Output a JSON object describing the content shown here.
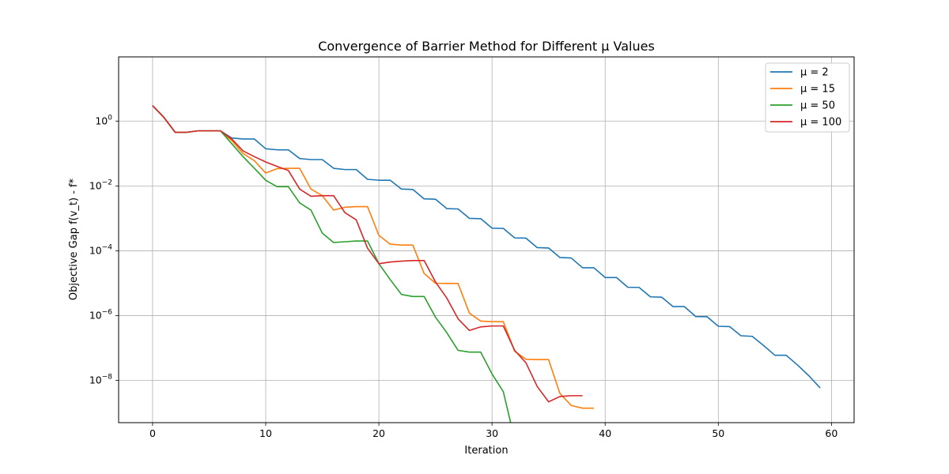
{
  "chart_data": {
    "type": "line",
    "title": "Convergence of Barrier Method for Different μ Values",
    "xlabel": "Iteration",
    "ylabel": "Objective Gap f(v_t) - f*",
    "xlim": [
      -3,
      62
    ],
    "ylim_log10": [
      -9.3,
      1.98
    ],
    "yscale": "log",
    "grid": true,
    "legend_position": "top-right",
    "x_ticks": [
      {
        "value": 0,
        "label": "0"
      },
      {
        "value": 10,
        "label": "10"
      },
      {
        "value": 20,
        "label": "20"
      },
      {
        "value": 30,
        "label": "30"
      },
      {
        "value": 40,
        "label": "40"
      },
      {
        "value": 50,
        "label": "50"
      },
      {
        "value": 60,
        "label": "60"
      }
    ],
    "y_ticks": [
      {
        "exp": 0,
        "base": "10",
        "sup": "0"
      },
      {
        "exp": -2,
        "base": "10",
        "sup": "−2"
      },
      {
        "exp": -4,
        "base": "10",
        "sup": "−4"
      },
      {
        "exp": -6,
        "base": "10",
        "sup": "−6"
      },
      {
        "exp": -8,
        "base": "10",
        "sup": "−8"
      }
    ],
    "series": [
      {
        "name": "μ = 2",
        "color": "#1f77b4",
        "x": [
          0,
          1,
          2,
          3,
          4,
          5,
          6,
          7,
          8,
          9,
          10,
          11,
          12,
          13,
          14,
          15,
          16,
          17,
          18,
          19,
          20,
          21,
          22,
          23,
          24,
          25,
          26,
          27,
          28,
          29,
          30,
          31,
          32,
          33,
          34,
          35,
          36,
          37,
          38,
          39,
          40,
          41,
          42,
          43,
          44,
          45,
          46,
          47,
          48,
          49,
          50,
          51,
          52,
          53,
          54,
          55,
          56,
          57,
          58,
          59
        ],
        "y": [
          3,
          1.3,
          0.45,
          0.45,
          0.5,
          0.5,
          0.5,
          0.3,
          0.28,
          0.28,
          0.14,
          0.13,
          0.13,
          0.07,
          0.065,
          0.065,
          0.035,
          0.032,
          0.032,
          0.016,
          0.015,
          0.015,
          0.008,
          0.0078,
          0.004,
          0.0039,
          0.002,
          0.00195,
          0.001,
          0.00098,
          0.0005,
          0.00049,
          0.00025,
          0.000245,
          0.000125,
          0.000122,
          6.2e-05,
          6e-05,
          3e-05,
          3e-05,
          1.5e-05,
          1.5e-05,
          7.5e-06,
          7.4e-06,
          3.8e-06,
          3.7e-06,
          1.9e-06,
          1.9e-06,
          9.4e-07,
          9.3e-07,
          4.7e-07,
          4.6e-07,
          2.4e-07,
          2.3e-07,
          1.2e-07,
          6e-08,
          6e-08,
          3e-08,
          1.4e-08,
          5.9e-09
        ]
      },
      {
        "name": "μ = 15",
        "color": "#ff7f0e",
        "x": [
          0,
          1,
          2,
          3,
          4,
          5,
          6,
          7,
          8,
          9,
          10,
          11,
          12,
          13,
          14,
          15,
          16,
          17,
          18,
          19,
          20,
          21,
          22,
          23,
          24,
          25,
          26,
          27,
          28,
          29,
          30,
          31,
          32,
          33,
          34,
          35,
          36,
          37,
          38,
          39
        ],
        "y": [
          3,
          1.3,
          0.45,
          0.45,
          0.5,
          0.5,
          0.5,
          0.25,
          0.1,
          0.06,
          0.025,
          0.034,
          0.035,
          0.035,
          0.008,
          0.005,
          0.0018,
          0.0022,
          0.0023,
          0.0023,
          0.0003,
          0.00016,
          0.00015,
          0.00015,
          2e-05,
          1e-05,
          9.8e-06,
          9.8e-06,
          1.2e-06,
          6.8e-07,
          6.5e-07,
          6.5e-07,
          8e-08,
          4.5e-08,
          4.4e-08,
          4.4e-08,
          4e-09,
          1.7e-09,
          1.4e-09,
          1.4e-09
        ]
      },
      {
        "name": "μ = 50",
        "color": "#2ca02c",
        "x": [
          0,
          1,
          2,
          3,
          4,
          5,
          6,
          7,
          8,
          9,
          10,
          11,
          12,
          13,
          14,
          15,
          16,
          17,
          18,
          19,
          20,
          21,
          22,
          23,
          24,
          25,
          26,
          27,
          28,
          29,
          30,
          31,
          32,
          32.01
        ],
        "y": [
          3,
          1.3,
          0.45,
          0.45,
          0.5,
          0.5,
          0.5,
          0.2,
          0.08,
          0.035,
          0.015,
          0.0095,
          0.0095,
          0.003,
          0.0018,
          0.00035,
          0.00018,
          0.00019,
          0.0002,
          0.0002,
          4e-05,
          1.3e-05,
          4.5e-06,
          3.9e-06,
          3.9e-06,
          9e-07,
          3e-07,
          8.5e-08,
          7.5e-08,
          7.5e-08,
          1.6e-08,
          4.5e-09,
          1.5e-10,
          5e-11
        ]
      },
      {
        "name": "μ = 100",
        "color": "#d62728",
        "x": [
          0,
          1,
          2,
          3,
          4,
          5,
          6,
          7,
          8,
          9,
          10,
          11,
          12,
          13,
          14,
          15,
          16,
          17,
          18,
          19,
          20,
          21,
          22,
          23,
          24,
          25,
          26,
          27,
          28,
          29,
          30,
          31,
          32,
          33,
          34,
          35,
          36,
          37,
          38
        ],
        "y": [
          3,
          1.3,
          0.45,
          0.45,
          0.5,
          0.5,
          0.5,
          0.28,
          0.12,
          0.08,
          0.055,
          0.04,
          0.03,
          0.008,
          0.0048,
          0.005,
          0.005,
          0.0015,
          0.0009,
          0.00012,
          4e-05,
          4.5e-05,
          4.8e-05,
          5e-05,
          5e-05,
          1.1e-05,
          3.5e-06,
          8e-07,
          3.5e-07,
          4.5e-07,
          4.8e-07,
          4.8e-07,
          8.5e-08,
          3.5e-08,
          6.5e-09,
          2.2e-09,
          3.2e-09,
          3.4e-09,
          3.4e-09
        ]
      }
    ]
  }
}
